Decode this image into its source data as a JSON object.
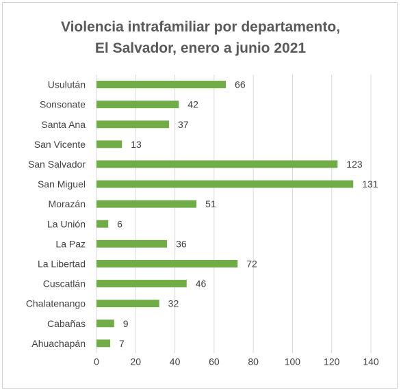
{
  "chart_data": {
    "type": "bar",
    "orientation": "horizontal",
    "title": "Violencia intrafamiliar por departamento, El Salvador, enero a junio 2021",
    "title_lines": [
      "Violencia intrafamiliar por departamento,",
      "El Salvador, enero a junio 2021"
    ],
    "categories": [
      "Usulután",
      "Sonsonate",
      "Santa Ana",
      "San Vicente",
      "San Salvador",
      "San Miguel",
      "Morazán",
      "La Unión",
      "La Paz",
      "La Libertad",
      "Cuscatlán",
      "Chalatenango",
      "Cabañas",
      "Ahuachapán"
    ],
    "values": [
      66,
      42,
      37,
      13,
      123,
      131,
      51,
      6,
      36,
      72,
      46,
      32,
      9,
      7
    ],
    "xlim": [
      0,
      140
    ],
    "xticks": [
      0,
      20,
      40,
      60,
      80,
      100,
      120,
      140
    ],
    "grid": true,
    "data_labels": true,
    "bar_color": "#70ad47",
    "grid_color": "#d9d9d9"
  }
}
